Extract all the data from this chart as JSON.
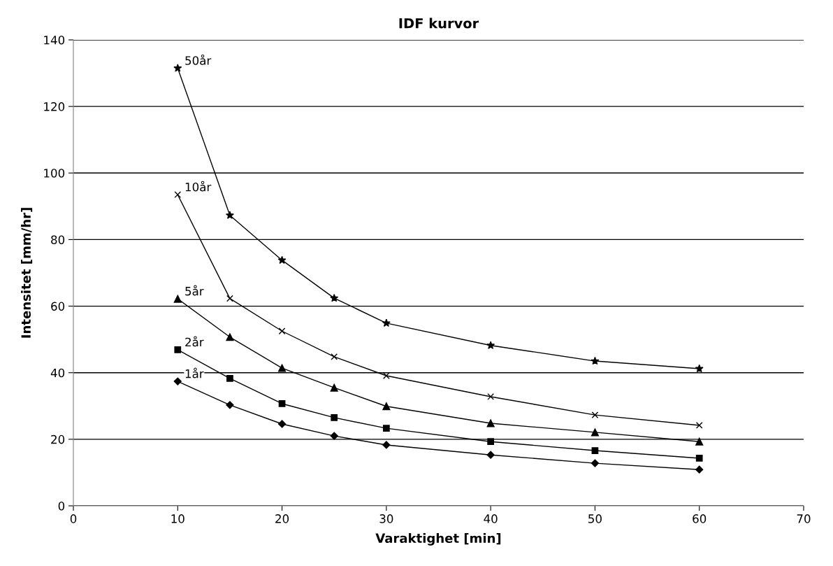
{
  "chart_data": {
    "type": "line",
    "title": "IDF kurvor",
    "xlabel": "Varaktighet [min]",
    "ylabel": "Intensitet [mm/hr]",
    "x": [
      10,
      15,
      20,
      25,
      30,
      40,
      50,
      60
    ],
    "series": [
      {
        "name": "50år",
        "color": "#000000",
        "marker": "star",
        "values": [
          131.5,
          87.3,
          73.8,
          62.4,
          54.9,
          48.2,
          43.5,
          41.2
        ]
      },
      {
        "name": "10år",
        "color": "#000000",
        "marker": "cross",
        "values": [
          93.5,
          62.3,
          52.5,
          44.8,
          39.1,
          32.8,
          27.3,
          24.2
        ]
      },
      {
        "name": "5år",
        "color": "#000000",
        "marker": "triangle",
        "values": [
          62.2,
          50.7,
          41.4,
          35.5,
          29.9,
          24.8,
          22.1,
          19.3
        ]
      },
      {
        "name": "2år",
        "color": "#000000",
        "marker": "square",
        "values": [
          46.9,
          38.3,
          30.7,
          26.5,
          23.3,
          19.3,
          16.6,
          14.3
        ]
      },
      {
        "name": "1år",
        "color": "#000000",
        "marker": "diamond",
        "values": [
          37.4,
          30.3,
          24.6,
          21.0,
          18.3,
          15.3,
          12.8,
          10.9
        ]
      }
    ],
    "xlim": [
      0,
      70
    ],
    "xticks": [
      0,
      10,
      20,
      30,
      40,
      50,
      60,
      70
    ],
    "ylim": [
      0,
      140
    ],
    "yticks": [
      0,
      20,
      40,
      60,
      80,
      100,
      120,
      140
    ],
    "grid": "y",
    "legend": false,
    "line_style": "solid"
  }
}
